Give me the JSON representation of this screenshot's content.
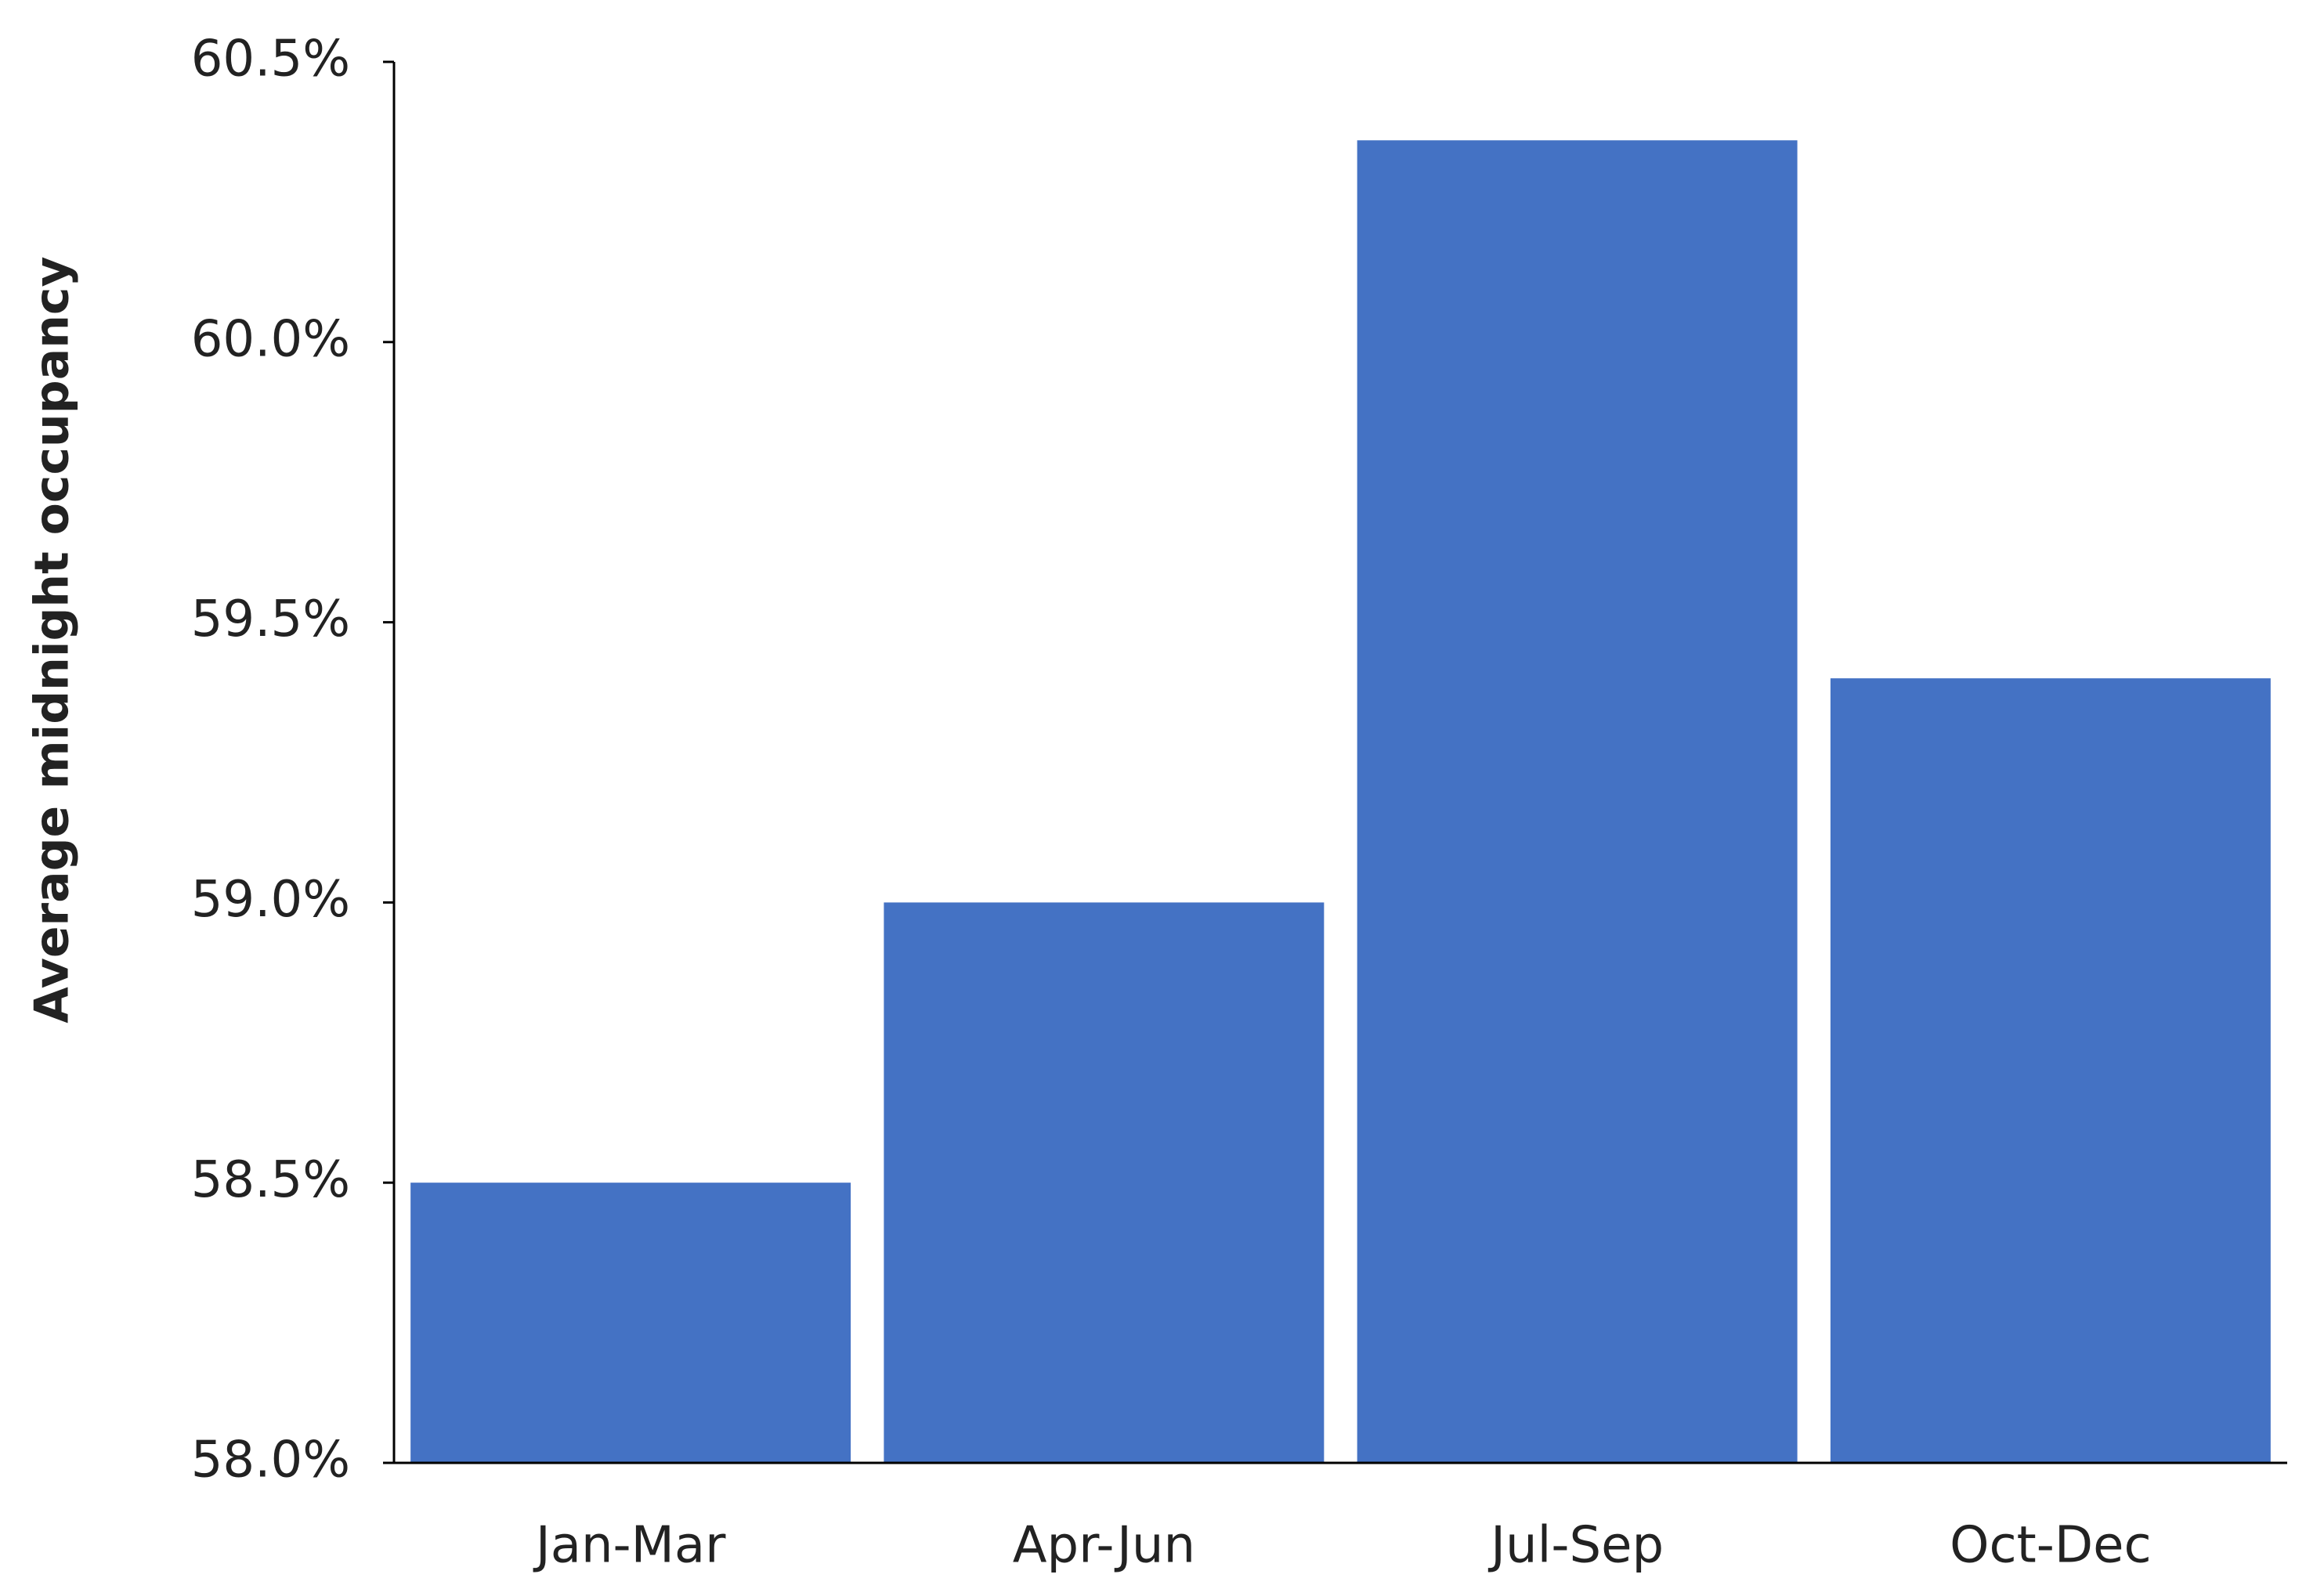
{
  "chart_data": {
    "type": "bar",
    "y_label": "Average midnight occupancy",
    "categories": [
      "Jan-Mar",
      "Apr-Jun",
      "Jul-Sep",
      "Oct-Dec"
    ],
    "values": [
      58.5,
      59.0,
      60.36,
      59.4
    ],
    "color": "#4472c4",
    "ylim": [
      58.0,
      60.5
    ],
    "yticks": [
      {
        "value": 58.0,
        "label": "58.0%"
      },
      {
        "value": 58.5,
        "label": "58.5%"
      },
      {
        "value": 59.0,
        "label": "59.0%"
      },
      {
        "value": 59.5,
        "label": "59.5%"
      },
      {
        "value": 60.0,
        "label": "60.0%"
      },
      {
        "value": 60.5,
        "label": "60.5%"
      }
    ],
    "grid": false
  }
}
